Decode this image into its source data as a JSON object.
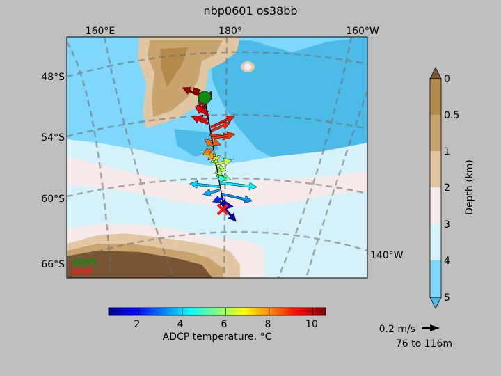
{
  "title": "nbp0601 os38bb",
  "map": {
    "lon_labels_top": [
      "160°E",
      "180°",
      "160°W"
    ],
    "lon_label_right": "140°W",
    "lat_labels": [
      "48°S",
      "54°S",
      "60°S",
      "66°S"
    ],
    "legend": {
      "start": "start",
      "end": "end"
    },
    "colors": {
      "deep_ocean": "#7fd7fb",
      "mid_ocean": "#4dbbe8",
      "abyssal_plain": "#d5f2fb",
      "shelf": "#f6e9e9",
      "land_light": "#e2c7a3",
      "land_mid": "#c9a46f",
      "land_dark": "#795533",
      "start_marker": "#0d8a10",
      "end_marker": "#ff1a1a"
    }
  },
  "depth_colorbar": {
    "label": "Depth (km)",
    "ticks": [
      "0",
      "0.5",
      "1",
      "2",
      "3",
      "4",
      "5"
    ],
    "colors": [
      "#b48a4c",
      "#c9a46f",
      "#e2c7a3",
      "#f6e9e9",
      "#d5f2fb",
      "#7fd7fb"
    ]
  },
  "temp_colorbar": {
    "label": "ADCP temperature, °C",
    "ticks": [
      "2",
      "4",
      "6",
      "8",
      "10"
    ],
    "range": [
      0.6,
      10.6
    ]
  },
  "scale": {
    "speed": "0.2 m/s",
    "depth_range": "76 to 116m"
  },
  "vectors": [
    {
      "t": 10.4,
      "u": -0.16,
      "v": 0.07
    },
    {
      "t": 10.3,
      "u": -0.1,
      "v": 0.1
    },
    {
      "t": 10.1,
      "u": 0.04,
      "v": 0.1
    },
    {
      "t": 10.0,
      "u": -0.05,
      "v": 0.08
    },
    {
      "t": 9.8,
      "u": -0.08,
      "v": 0.05
    },
    {
      "t": 9.6,
      "u": -0.1,
      "v": 0.07
    },
    {
      "t": 9.5,
      "u": -0.09,
      "v": 0.02
    },
    {
      "t": 9.4,
      "u": -0.12,
      "v": 0.05
    },
    {
      "t": 9.2,
      "u": 0.17,
      "v": 0.08
    },
    {
      "t": 9.0,
      "u": 0.14,
      "v": 0.06
    },
    {
      "t": 8.9,
      "u": 0.15,
      "v": -0.02
    },
    {
      "t": 8.8,
      "u": 0.17,
      "v": 0.03
    },
    {
      "t": 8.5,
      "u": 0.05,
      "v": -0.02
    },
    {
      "t": 8.3,
      "u": -0.06,
      "v": 0.05
    },
    {
      "t": 8.1,
      "u": -0.07,
      "v": -0.04
    },
    {
      "t": 7.8,
      "u": -0.05,
      "v": -0.05
    },
    {
      "t": 7.0,
      "u": -0.01,
      "v": -0.04
    },
    {
      "t": 6.5,
      "u": 0.03,
      "v": -0.02
    },
    {
      "t": 6.3,
      "u": 0.12,
      "v": 0.03
    },
    {
      "t": 6.1,
      "u": 0.06,
      "v": -0.02
    },
    {
      "t": 5.9,
      "u": 0.03,
      "v": -0.03
    },
    {
      "t": 5.5,
      "u": 0.1,
      "v": -0.03
    },
    {
      "t": 4.8,
      "u": 0.06,
      "v": 0.01
    },
    {
      "t": 4.2,
      "u": 0.26,
      "v": -0.03
    },
    {
      "t": 3.9,
      "u": -0.22,
      "v": 0.02
    },
    {
      "t": 3.5,
      "u": -0.12,
      "v": -0.03
    },
    {
      "t": 3.3,
      "u": 0.22,
      "v": -0.05
    },
    {
      "t": 2.2,
      "u": -0.08,
      "v": -0.03
    },
    {
      "t": 1.6,
      "u": 0.04,
      "v": -0.04
    },
    {
      "t": 1.2,
      "u": 0.08,
      "v": -0.01
    },
    {
      "t": 0.9,
      "u": 0.08,
      "v": -0.09
    }
  ]
}
